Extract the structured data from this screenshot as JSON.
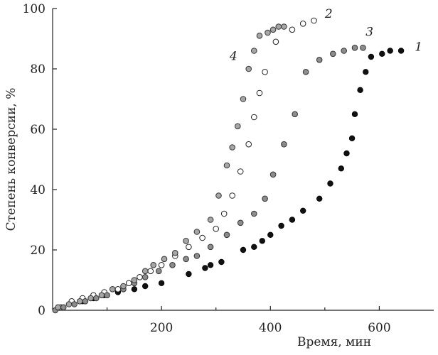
{
  "chart_data": {
    "type": "scatter",
    "title": "",
    "xlabel": "Время, мин",
    "ylabel": "Степень конверсии, %",
    "xlim": [
      0,
      700
    ],
    "ylim": [
      0,
      100
    ],
    "xticks": [
      200,
      400,
      600
    ],
    "yticks": [
      0,
      20,
      40,
      60,
      80,
      100
    ],
    "grid": false,
    "series": [
      {
        "name": "1",
        "color": "#111111",
        "marker": "filled-black",
        "x": [
          55,
          75,
          95,
          120,
          150,
          170,
          200,
          250,
          280,
          290,
          310,
          350,
          370,
          385,
          400,
          420,
          440,
          460,
          490,
          510,
          530,
          540,
          550,
          555,
          565,
          575,
          585,
          605,
          620,
          640
        ],
        "y": [
          3,
          4,
          5,
          6,
          7,
          8,
          9,
          12,
          14,
          15,
          16,
          20,
          21,
          23,
          25,
          28,
          30,
          33,
          37,
          42,
          47,
          52,
          57,
          65,
          73,
          79,
          84,
          85,
          86,
          86
        ]
      },
      {
        "name": "2",
        "color": "#ffffff",
        "marker": "hollow",
        "x": [
          15,
          35,
          55,
          75,
          95,
          120,
          140,
          160,
          180,
          200,
          225,
          250,
          275,
          300,
          315,
          330,
          345,
          360,
          370,
          380,
          390,
          410,
          440,
          460,
          480
        ],
        "y": [
          1,
          3,
          4,
          5,
          6,
          7,
          9,
          11,
          13,
          15,
          18,
          21,
          24,
          27,
          32,
          38,
          46,
          55,
          64,
          72,
          79,
          89,
          93,
          95,
          96
        ]
      },
      {
        "name": "3",
        "color": "#8c8c8c",
        "marker": "gray",
        "x": [
          5,
          20,
          40,
          60,
          80,
          100,
          130,
          150,
          170,
          195,
          220,
          245,
          265,
          290,
          320,
          345,
          370,
          390,
          405,
          425,
          445,
          465,
          490,
          515,
          535,
          555,
          570
        ],
        "y": [
          0,
          1,
          2,
          3,
          4,
          5,
          7,
          9,
          11,
          13,
          15,
          17,
          18,
          21,
          25,
          29,
          32,
          37,
          45,
          55,
          65,
          79,
          83,
          85,
          86,
          87,
          87
        ]
      },
      {
        "name": "4",
        "color": "#a6a6a6",
        "marker": "gray",
        "x": [
          10,
          30,
          50,
          70,
          90,
          110,
          130,
          150,
          170,
          185,
          205,
          225,
          245,
          265,
          290,
          305,
          320,
          330,
          340,
          350,
          360,
          370,
          380,
          395,
          405,
          415,
          425
        ],
        "y": [
          1,
          2,
          3,
          4,
          5,
          7,
          8,
          10,
          13,
          15,
          17,
          19,
          23,
          26,
          30,
          38,
          48,
          54,
          61,
          70,
          80,
          86,
          91,
          92,
          93,
          94,
          94
        ]
      }
    ],
    "series_labels": [
      {
        "text": "1",
        "x": 665,
        "y": 86
      },
      {
        "text": "2",
        "x": 500,
        "y": 97
      },
      {
        "text": "3",
        "x": 575,
        "y": 91
      },
      {
        "text": "4",
        "x": 325,
        "y": 83
      }
    ]
  }
}
